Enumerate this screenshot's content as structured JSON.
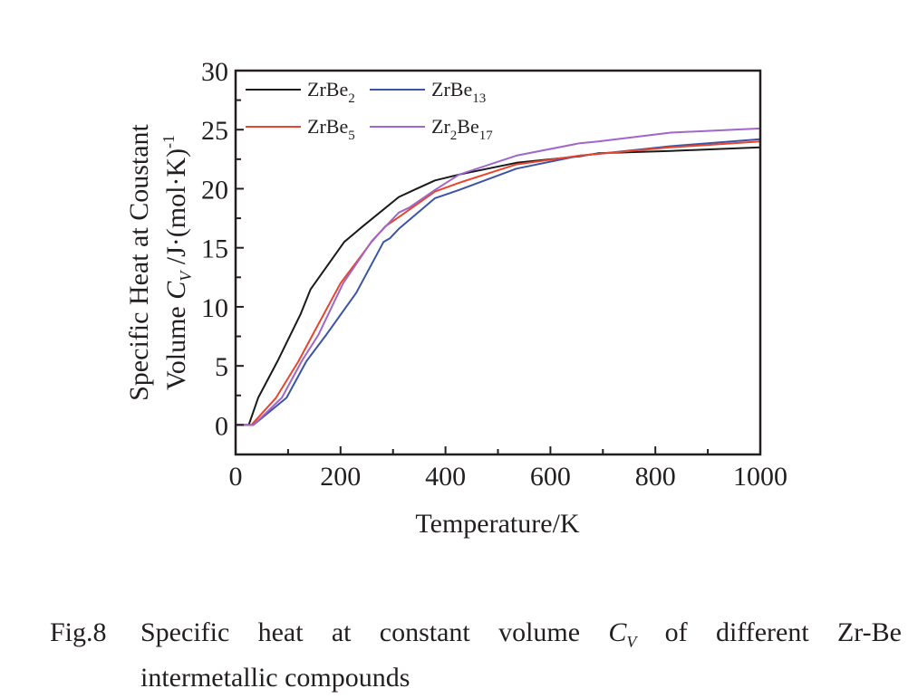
{
  "chart_data": {
    "type": "line",
    "xlabel": "Temperature/K",
    "ylabel_line1": "Specific Heat at Coustant",
    "ylabel_line2_prefix": "Volume ",
    "ylabel_symbol": "C",
    "ylabel_symbol_sub": "V",
    "ylabel_units": " /J·(mol·K)",
    "ylabel_units_sup": "-1",
    "xlim": [
      0,
      1000
    ],
    "ylim": [
      -2.5,
      30
    ],
    "xticks": [
      0,
      200,
      400,
      600,
      800,
      1000
    ],
    "xtick_labels": [
      "0",
      "200",
      "400",
      "600",
      "800",
      "1000"
    ],
    "yticks": [
      0,
      5,
      10,
      15,
      20,
      25,
      30
    ],
    "ytick_labels": [
      "0",
      "5",
      "10",
      "15",
      "20",
      "25",
      "30"
    ],
    "grid": false,
    "legend_position": "top-left",
    "series": [
      {
        "name": "ZrBe2",
        "label_main": "ZrBe",
        "label_sub": "2",
        "color": "#1a1a1a",
        "x": [
          0,
          25,
          43,
          80,
          124,
          143,
          207,
          242,
          311,
          340,
          380,
          426,
          535,
          656,
          691,
          829,
          1000
        ],
        "y": [
          0,
          0,
          2.3,
          5.4,
          9.4,
          11.5,
          15.5,
          16.8,
          19.3,
          19.9,
          20.7,
          21.2,
          22.2,
          22.75,
          23.0,
          23.2,
          23.5
        ]
      },
      {
        "name": "ZrBe13",
        "label_main": "ZrBe",
        "label_sub": "13",
        "color": "#3a55a4",
        "x": [
          0,
          34,
          97,
          135,
          173,
          230,
          282,
          294,
          311,
          380,
          426,
          535,
          656,
          691,
          829,
          1000
        ],
        "y": [
          0,
          0,
          2.3,
          5.4,
          7.65,
          11.2,
          15.5,
          15.8,
          16.6,
          19.2,
          19.9,
          21.7,
          22.8,
          22.95,
          23.6,
          24.2
        ]
      },
      {
        "name": "ZrBe5",
        "label_main": "ZrBe",
        "label_sub": "5",
        "color": "#e8452c",
        "x": [
          0,
          30,
          77,
          120,
          147,
          200,
          259,
          285,
          311,
          380,
          426,
          535,
          656,
          691,
          829,
          1000
        ],
        "y": [
          0,
          0,
          2.3,
          5.4,
          7.65,
          12.0,
          15.5,
          16.8,
          17.6,
          19.76,
          20.5,
          22.06,
          22.8,
          22.95,
          23.5,
          24.0
        ]
      },
      {
        "name": "Zr2Be17",
        "label_main": "Zr",
        "label_sub": "2",
        "label_main2": "Be",
        "label_sub2": "17",
        "color": "#a066c8",
        "x": [
          0,
          34,
          88,
          126,
          158,
          205,
          260,
          311,
          331,
          380,
          426,
          535,
          656,
          691,
          829,
          1000
        ],
        "y": [
          0,
          0,
          2.3,
          5.4,
          7.65,
          12.0,
          15.6,
          17.98,
          18.4,
          19.9,
          21.2,
          22.8,
          23.85,
          24.0,
          24.75,
          25.1
        ]
      }
    ]
  },
  "caption": {
    "label": "Fig.8",
    "text_before": "Specific  heat  at  constant  volume ",
    "symbol": "C",
    "symbol_sub": "V",
    "text_after": " of  different  Zr-Be",
    "line2": "intermetallic compounds"
  }
}
